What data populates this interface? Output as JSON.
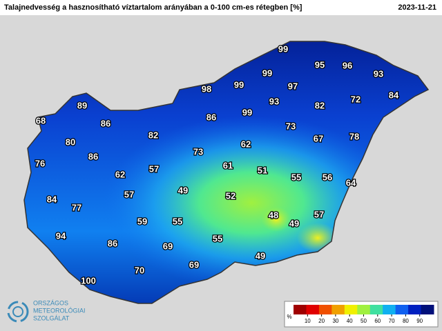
{
  "header": {
    "title": "Talajnedvesség a hasznosítható víztartalom arányában a 0-100 cm-es rétegben [%]",
    "date": "2023-11-21"
  },
  "points": [
    99,
    95,
    96,
    93,
    99,
    98,
    99,
    97,
    84,
    72,
    82,
    93,
    89,
    86,
    99,
    68,
    86,
    73,
    80,
    82,
    67,
    78,
    62,
    73,
    86,
    76,
    61,
    51,
    57,
    62,
    55,
    56,
    64,
    49,
    52,
    57,
    84,
    77,
    48,
    57,
    49,
    59,
    55,
    94,
    86,
    69,
    55,
    49,
    69,
    70,
    100
  ],
  "legend": {
    "unit": "%",
    "ticks": [
      10,
      20,
      30,
      40,
      50,
      60,
      70,
      80,
      90
    ]
  },
  "logo": {
    "lines": [
      "ORSZÁGOS",
      "METEOROLÓGIAI",
      "SZOLGÁLAT"
    ]
  }
}
